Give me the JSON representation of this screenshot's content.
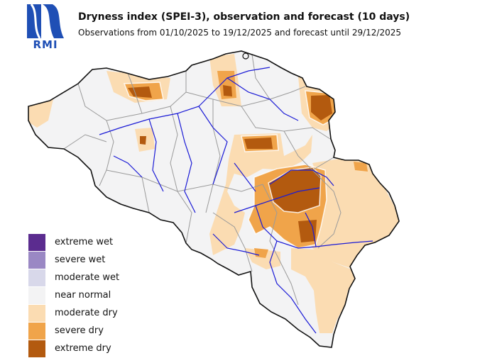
{
  "header": {
    "title": "Dryness index (SPEI-3), observation and forecast (10 days)",
    "subtitle": "Observations from 01/10/2025 to 19/12/2025 and forecast until 29/12/2025"
  },
  "logo": {
    "text": "RMI",
    "color": "#1f4fb5"
  },
  "colors": {
    "extreme_wet": "#5b2c8f",
    "severe_wet": "#9a88c4",
    "moderate_wet": "#d8d8ea",
    "near_normal": "#f3f3f4",
    "moderate_dry": "#fbdcb2",
    "severe_dry": "#f0a44a",
    "extreme_dry": "#b35a0f",
    "river": "#1b1bd6",
    "border": "#9a9a9a",
    "country_outline": "#111111"
  },
  "legend": [
    {
      "label": "extreme wet",
      "color": "#5b2c8f"
    },
    {
      "label": "severe wet",
      "color": "#9a88c4"
    },
    {
      "label": "moderate wet",
      "color": "#d8d8ea"
    },
    {
      "label": "near normal",
      "color": "#f3f3f4"
    },
    {
      "label": "moderate dry",
      "color": "#fbdcb2"
    },
    {
      "label": "severe dry",
      "color": "#f0a44a"
    },
    {
      "label": "extreme dry",
      "color": "#b35a0f"
    }
  ]
}
